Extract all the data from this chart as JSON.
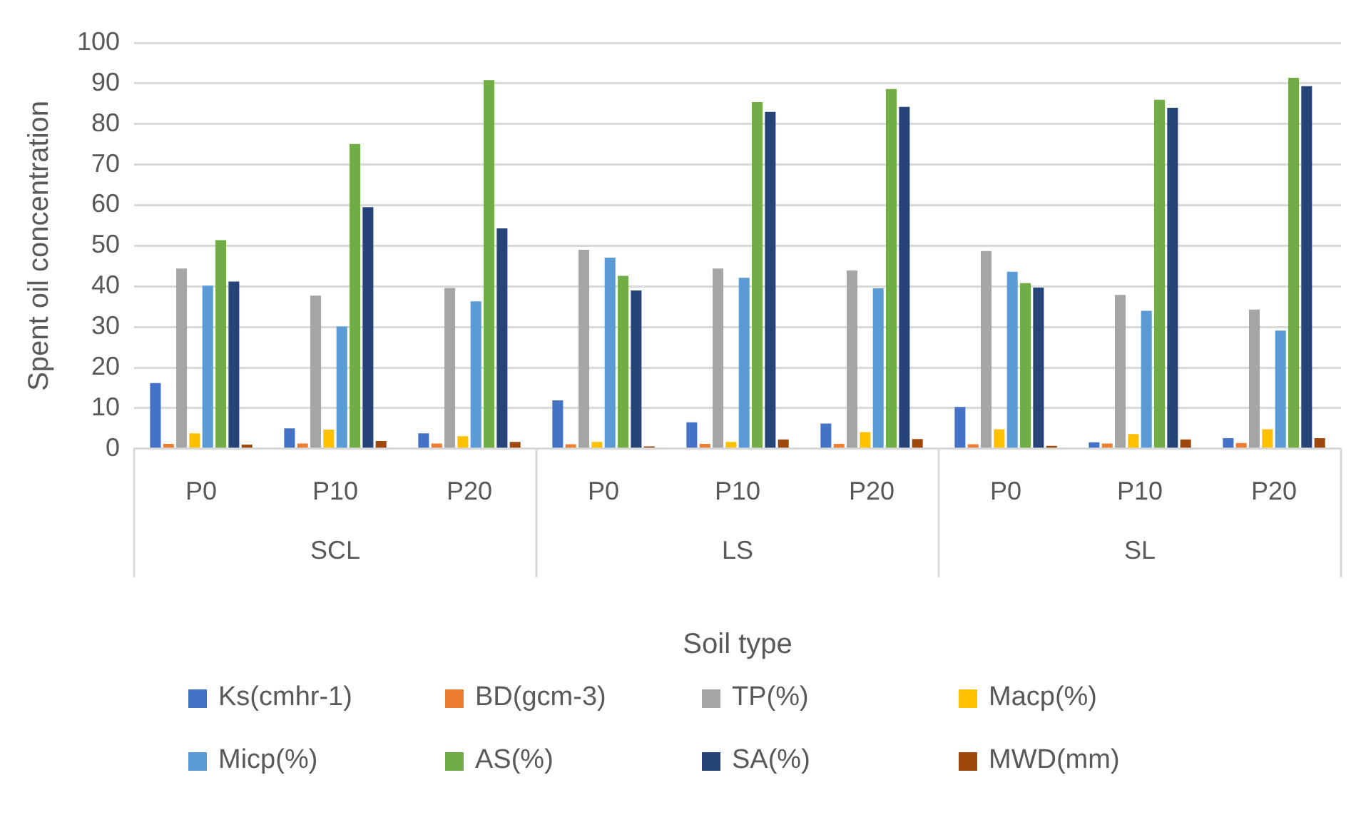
{
  "chart_data": {
    "type": "bar",
    "xlabel": "Soil type",
    "ylabel": "Spent oil concentration",
    "categories": [
      "P0",
      "P10",
      "P20",
      "P0",
      "P10",
      "P20",
      "P0",
      "P10",
      "P20"
    ],
    "annotations": [
      "SCL",
      "LS",
      "SL"
    ],
    "series": [
      {
        "name": "Ks(cmhr-1)",
        "color": "#4472c4",
        "values": [
          16.2,
          5.0,
          3.8,
          11.9,
          6.5,
          6.2,
          10.3,
          1.6,
          2.6
        ]
      },
      {
        "name": "BD(gcm-3)",
        "color": "#ed7d31",
        "values": [
          1.2,
          1.3,
          1.3,
          1.1,
          1.2,
          1.2,
          1.1,
          1.3,
          1.4
        ]
      },
      {
        "name": "TP(%)",
        "color": "#a5a5a5",
        "values": [
          44.4,
          37.7,
          39.6,
          49.0,
          44.4,
          43.9,
          48.7,
          37.9,
          34.3
        ]
      },
      {
        "name": "Macp(%)",
        "color": "#ffc000",
        "values": [
          3.8,
          4.7,
          3.1,
          1.7,
          1.7,
          4.1,
          4.8,
          3.6,
          4.8
        ]
      },
      {
        "name": "Micp(%)",
        "color": "#5b9bd5",
        "values": [
          40.2,
          30.1,
          36.3,
          47.1,
          42.1,
          39.5,
          43.6,
          34.0,
          29.1
        ]
      },
      {
        "name": "AS(%)",
        "color": "#70ad47",
        "values": [
          51.4,
          75.1,
          90.8,
          42.6,
          85.4,
          88.6,
          40.8,
          86.0,
          91.4
        ]
      },
      {
        "name": "SA(%)",
        "color": "#264478",
        "values": [
          41.2,
          59.5,
          54.3,
          39.0,
          83.0,
          84.2,
          39.7,
          84.0,
          89.3
        ]
      },
      {
        "name": "MWD(mm)",
        "color": "#9e480e",
        "values": [
          1.0,
          1.9,
          1.7,
          0.6,
          2.3,
          2.4,
          0.7,
          2.3,
          2.6
        ]
      }
    ],
    "ylim": [
      0,
      100
    ],
    "yticks": [
      0,
      10,
      20,
      30,
      40,
      50,
      60,
      70,
      80,
      90,
      100
    ],
    "grid": "y",
    "legend": "bottom"
  }
}
